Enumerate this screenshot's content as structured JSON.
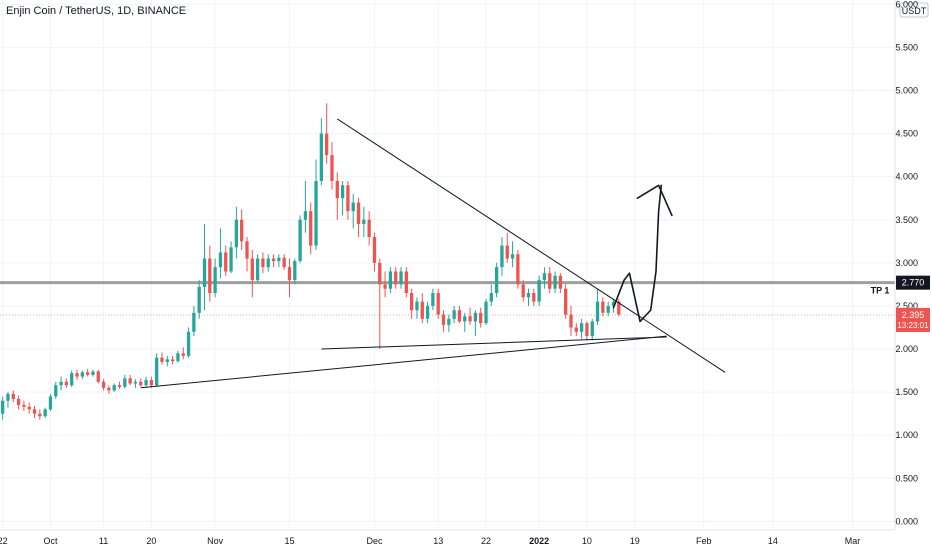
{
  "header": {
    "title": "Enjin Coin / TetherUS, 1D, BINANCE"
  },
  "colors": {
    "up": "#26a69a",
    "down": "#ef5350",
    "grid": "#f0f3fa",
    "trendline": "#131722",
    "horizontal_level": "#9e9e9e",
    "current_price_label": "#ef5350"
  },
  "chart_data": {
    "type": "candlestick",
    "symbol": "Enjin Coin / TetherUS",
    "interval": "1D",
    "exchange": "BINANCE",
    "currency_label": "USDT",
    "y_ticks": [
      "0.000",
      "0.500",
      "1.000",
      "1.500",
      "2.000",
      "2.500",
      "3.000",
      "3.500",
      "4.000",
      "4.500",
      "5.000",
      "5.500",
      "6.000"
    ],
    "ylim": [
      -0.1,
      6.05
    ],
    "x_ticks": [
      {
        "label": "22",
        "day": 0,
        "bold": false
      },
      {
        "label": "Oct",
        "day": 9,
        "bold": false
      },
      {
        "label": "11",
        "day": 19,
        "bold": false
      },
      {
        "label": "20",
        "day": 28,
        "bold": false
      },
      {
        "label": "Nov",
        "day": 40,
        "bold": false
      },
      {
        "label": "15",
        "day": 54,
        "bold": false
      },
      {
        "label": "Dec",
        "day": 70,
        "bold": false
      },
      {
        "label": "13",
        "day": 82,
        "bold": false
      },
      {
        "label": "22",
        "day": 91,
        "bold": false
      },
      {
        "label": "2022",
        "day": 101,
        "bold": true
      },
      {
        "label": "10",
        "day": 110,
        "bold": false
      },
      {
        "label": "19",
        "day": 119,
        "bold": false
      },
      {
        "label": "Feb",
        "day": 132,
        "bold": false
      },
      {
        "label": "14",
        "day": 145,
        "bold": false
      },
      {
        "label": "Mar",
        "day": 160,
        "bold": false
      }
    ],
    "x_range_days": [
      -0.5,
      168
    ],
    "candles": [
      {
        "o": 1.25,
        "h": 1.45,
        "l": 1.18,
        "c": 1.4
      },
      {
        "o": 1.4,
        "h": 1.5,
        "l": 1.32,
        "c": 1.48
      },
      {
        "o": 1.48,
        "h": 1.52,
        "l": 1.38,
        "c": 1.42
      },
      {
        "o": 1.42,
        "h": 1.46,
        "l": 1.3,
        "c": 1.35
      },
      {
        "o": 1.35,
        "h": 1.4,
        "l": 1.28,
        "c": 1.33
      },
      {
        "o": 1.33,
        "h": 1.38,
        "l": 1.25,
        "c": 1.3
      },
      {
        "o": 1.3,
        "h": 1.34,
        "l": 1.2,
        "c": 1.25
      },
      {
        "o": 1.25,
        "h": 1.3,
        "l": 1.18,
        "c": 1.22
      },
      {
        "o": 1.22,
        "h": 1.32,
        "l": 1.2,
        "c": 1.3
      },
      {
        "o": 1.3,
        "h": 1.48,
        "l": 1.28,
        "c": 1.45
      },
      {
        "o": 1.45,
        "h": 1.62,
        "l": 1.42,
        "c": 1.58
      },
      {
        "o": 1.58,
        "h": 1.68,
        "l": 1.52,
        "c": 1.62
      },
      {
        "o": 1.62,
        "h": 1.66,
        "l": 1.55,
        "c": 1.58
      },
      {
        "o": 1.58,
        "h": 1.75,
        "l": 1.56,
        "c": 1.72
      },
      {
        "o": 1.72,
        "h": 1.76,
        "l": 1.64,
        "c": 1.68
      },
      {
        "o": 1.68,
        "h": 1.75,
        "l": 1.65,
        "c": 1.73
      },
      {
        "o": 1.73,
        "h": 1.77,
        "l": 1.68,
        "c": 1.7
      },
      {
        "o": 1.7,
        "h": 1.76,
        "l": 1.68,
        "c": 1.74
      },
      {
        "o": 1.74,
        "h": 1.76,
        "l": 1.6,
        "c": 1.62
      },
      {
        "o": 1.62,
        "h": 1.65,
        "l": 1.52,
        "c": 1.55
      },
      {
        "o": 1.55,
        "h": 1.58,
        "l": 1.48,
        "c": 1.52
      },
      {
        "o": 1.52,
        "h": 1.6,
        "l": 1.5,
        "c": 1.58
      },
      {
        "o": 1.58,
        "h": 1.62,
        "l": 1.54,
        "c": 1.56
      },
      {
        "o": 1.56,
        "h": 1.7,
        "l": 1.54,
        "c": 1.66
      },
      {
        "o": 1.66,
        "h": 1.7,
        "l": 1.58,
        "c": 1.6
      },
      {
        "o": 1.6,
        "h": 1.65,
        "l": 1.55,
        "c": 1.62
      },
      {
        "o": 1.62,
        "h": 1.66,
        "l": 1.56,
        "c": 1.58
      },
      {
        "o": 1.58,
        "h": 1.68,
        "l": 1.56,
        "c": 1.64
      },
      {
        "o": 1.64,
        "h": 1.68,
        "l": 1.55,
        "c": 1.58
      },
      {
        "o": 1.58,
        "h": 1.95,
        "l": 1.56,
        "c": 1.9
      },
      {
        "o": 1.9,
        "h": 1.96,
        "l": 1.82,
        "c": 1.85
      },
      {
        "o": 1.85,
        "h": 1.92,
        "l": 1.8,
        "c": 1.88
      },
      {
        "o": 1.88,
        "h": 1.92,
        "l": 1.82,
        "c": 1.86
      },
      {
        "o": 1.86,
        "h": 1.98,
        "l": 1.84,
        "c": 1.95
      },
      {
        "o": 1.95,
        "h": 2.02,
        "l": 1.88,
        "c": 1.92
      },
      {
        "o": 1.92,
        "h": 2.25,
        "l": 1.9,
        "c": 2.2
      },
      {
        "o": 2.2,
        "h": 2.5,
        "l": 2.15,
        "c": 2.42
      },
      {
        "o": 2.42,
        "h": 2.8,
        "l": 2.35,
        "c": 2.72
      },
      {
        "o": 2.72,
        "h": 3.45,
        "l": 2.45,
        "c": 3.05
      },
      {
        "o": 3.05,
        "h": 3.2,
        "l": 2.55,
        "c": 2.65
      },
      {
        "o": 2.65,
        "h": 3.05,
        "l": 2.6,
        "c": 2.95
      },
      {
        "o": 2.95,
        "h": 3.4,
        "l": 2.82,
        "c": 3.12
      },
      {
        "o": 3.12,
        "h": 3.2,
        "l": 2.85,
        "c": 2.9
      },
      {
        "o": 2.9,
        "h": 3.25,
        "l": 2.88,
        "c": 3.18
      },
      {
        "o": 3.18,
        "h": 3.65,
        "l": 3.05,
        "c": 3.5
      },
      {
        "o": 3.5,
        "h": 3.62,
        "l": 3.15,
        "c": 3.25
      },
      {
        "o": 3.25,
        "h": 3.3,
        "l": 2.9,
        "c": 3.05
      },
      {
        "o": 3.05,
        "h": 3.15,
        "l": 2.6,
        "c": 2.8
      },
      {
        "o": 2.8,
        "h": 3.1,
        "l": 2.78,
        "c": 3.05
      },
      {
        "o": 3.05,
        "h": 3.12,
        "l": 2.88,
        "c": 2.95
      },
      {
        "o": 2.95,
        "h": 3.1,
        "l": 2.9,
        "c": 3.05
      },
      {
        "o": 3.05,
        "h": 3.1,
        "l": 2.95,
        "c": 3.02
      },
      {
        "o": 3.02,
        "h": 3.1,
        "l": 2.95,
        "c": 3.06
      },
      {
        "o": 3.06,
        "h": 3.1,
        "l": 2.92,
        "c": 2.95
      },
      {
        "o": 2.95,
        "h": 3.05,
        "l": 2.6,
        "c": 2.8
      },
      {
        "o": 2.8,
        "h": 3.05,
        "l": 2.75,
        "c": 3.02
      },
      {
        "o": 3.02,
        "h": 3.55,
        "l": 3.0,
        "c": 3.5
      },
      {
        "o": 3.5,
        "h": 3.95,
        "l": 3.35,
        "c": 3.6
      },
      {
        "o": 3.6,
        "h": 3.7,
        "l": 3.1,
        "c": 3.2
      },
      {
        "o": 3.2,
        "h": 4.2,
        "l": 3.15,
        "c": 3.95
      },
      {
        "o": 3.95,
        "h": 4.68,
        "l": 3.9,
        "c": 4.5
      },
      {
        "o": 4.5,
        "h": 4.85,
        "l": 4.15,
        "c": 4.25
      },
      {
        "o": 4.25,
        "h": 4.4,
        "l": 3.85,
        "c": 3.95
      },
      {
        "o": 3.95,
        "h": 4.05,
        "l": 3.5,
        "c": 3.75
      },
      {
        "o": 3.75,
        "h": 3.95,
        "l": 3.55,
        "c": 3.9
      },
      {
        "o": 3.9,
        "h": 3.95,
        "l": 3.5,
        "c": 3.6
      },
      {
        "o": 3.6,
        "h": 3.8,
        "l": 3.4,
        "c": 3.7
      },
      {
        "o": 3.7,
        "h": 3.75,
        "l": 3.3,
        "c": 3.45
      },
      {
        "o": 3.45,
        "h": 3.65,
        "l": 3.3,
        "c": 3.5
      },
      {
        "o": 3.5,
        "h": 3.6,
        "l": 3.2,
        "c": 3.3
      },
      {
        "o": 3.3,
        "h": 3.35,
        "l": 2.9,
        "c": 3.0
      },
      {
        "o": 3.0,
        "h": 3.05,
        "l": 2.0,
        "c": 2.75
      },
      {
        "o": 2.75,
        "h": 2.9,
        "l": 2.6,
        "c": 2.7
      },
      {
        "o": 2.7,
        "h": 2.95,
        "l": 2.65,
        "c": 2.9
      },
      {
        "o": 2.9,
        "h": 2.95,
        "l": 2.7,
        "c": 2.75
      },
      {
        "o": 2.75,
        "h": 2.95,
        "l": 2.7,
        "c": 2.9
      },
      {
        "o": 2.9,
        "h": 2.95,
        "l": 2.6,
        "c": 2.65
      },
      {
        "o": 2.65,
        "h": 2.7,
        "l": 2.35,
        "c": 2.45
      },
      {
        "o": 2.45,
        "h": 2.6,
        "l": 2.35,
        "c": 2.55
      },
      {
        "o": 2.55,
        "h": 2.65,
        "l": 2.3,
        "c": 2.35
      },
      {
        "o": 2.35,
        "h": 2.55,
        "l": 2.3,
        "c": 2.5
      },
      {
        "o": 2.5,
        "h": 2.7,
        "l": 2.45,
        "c": 2.65
      },
      {
        "o": 2.65,
        "h": 2.7,
        "l": 2.35,
        "c": 2.4
      },
      {
        "o": 2.4,
        "h": 2.45,
        "l": 2.2,
        "c": 2.28
      },
      {
        "o": 2.28,
        "h": 2.4,
        "l": 2.2,
        "c": 2.35
      },
      {
        "o": 2.35,
        "h": 2.5,
        "l": 2.3,
        "c": 2.45
      },
      {
        "o": 2.45,
        "h": 2.5,
        "l": 2.3,
        "c": 2.32
      },
      {
        "o": 2.32,
        "h": 2.42,
        "l": 2.2,
        "c": 2.38
      },
      {
        "o": 2.38,
        "h": 2.48,
        "l": 2.28,
        "c": 2.32
      },
      {
        "o": 2.32,
        "h": 2.45,
        "l": 2.15,
        "c": 2.42
      },
      {
        "o": 2.42,
        "h": 2.48,
        "l": 2.25,
        "c": 2.3
      },
      {
        "o": 2.3,
        "h": 2.58,
        "l": 2.28,
        "c": 2.55
      },
      {
        "o": 2.55,
        "h": 2.75,
        "l": 2.5,
        "c": 2.65
      },
      {
        "o": 2.65,
        "h": 3.0,
        "l": 2.6,
        "c": 2.95
      },
      {
        "o": 2.95,
        "h": 3.3,
        "l": 2.85,
        "c": 3.2
      },
      {
        "o": 3.2,
        "h": 3.35,
        "l": 3.0,
        "c": 3.05
      },
      {
        "o": 3.05,
        "h": 3.25,
        "l": 2.95,
        "c": 3.1
      },
      {
        "o": 3.1,
        "h": 3.15,
        "l": 2.7,
        "c": 2.75
      },
      {
        "o": 2.75,
        "h": 2.8,
        "l": 2.55,
        "c": 2.6
      },
      {
        "o": 2.6,
        "h": 2.7,
        "l": 2.5,
        "c": 2.65
      },
      {
        "o": 2.65,
        "h": 2.7,
        "l": 2.5,
        "c": 2.55
      },
      {
        "o": 2.55,
        "h": 2.85,
        "l": 2.5,
        "c": 2.8
      },
      {
        "o": 2.8,
        "h": 2.95,
        "l": 2.7,
        "c": 2.88
      },
      {
        "o": 2.88,
        "h": 2.95,
        "l": 2.65,
        "c": 2.7
      },
      {
        "o": 2.7,
        "h": 2.9,
        "l": 2.65,
        "c": 2.85
      },
      {
        "o": 2.85,
        "h": 2.88,
        "l": 2.65,
        "c": 2.7
      },
      {
        "o": 2.7,
        "h": 2.75,
        "l": 2.35,
        "c": 2.4
      },
      {
        "o": 2.4,
        "h": 2.5,
        "l": 2.15,
        "c": 2.25
      },
      {
        "o": 2.25,
        "h": 2.3,
        "l": 2.15,
        "c": 2.2
      },
      {
        "o": 2.2,
        "h": 2.35,
        "l": 2.12,
        "c": 2.3
      },
      {
        "o": 2.3,
        "h": 2.32,
        "l": 2.1,
        "c": 2.15
      },
      {
        "o": 2.15,
        "h": 2.35,
        "l": 2.1,
        "c": 2.32
      },
      {
        "o": 2.32,
        "h": 2.7,
        "l": 2.28,
        "c": 2.55
      },
      {
        "o": 2.55,
        "h": 2.6,
        "l": 2.38,
        "c": 2.42
      },
      {
        "o": 2.42,
        "h": 2.55,
        "l": 2.38,
        "c": 2.5
      },
      {
        "o": 2.5,
        "h": 2.58,
        "l": 2.42,
        "c": 2.55
      },
      {
        "o": 2.55,
        "h": 2.58,
        "l": 2.38,
        "c": 2.4
      }
    ],
    "horizontal_level": {
      "value": 2.77,
      "label": "2.770",
      "name": "TP 1"
    },
    "current_price": {
      "value": 2.395,
      "label": "2.395",
      "countdown": "13:23:01"
    },
    "drawings": {
      "trendlines": [
        {
          "from": [
            63,
            4.67
          ],
          "to": [
            136,
            1.73
          ]
        },
        {
          "from": [
            60,
            2.0
          ],
          "to": [
            125,
            2.14
          ]
        },
        {
          "from": [
            26,
            1.55
          ],
          "to": [
            125,
            2.15
          ]
        }
      ],
      "freehand_path": [
        [
          115,
          2.48
        ],
        [
          117,
          2.8
        ],
        [
          118,
          2.88
        ],
        [
          119,
          2.6
        ],
        [
          120,
          2.32
        ],
        [
          122,
          2.45
        ],
        [
          123,
          2.9
        ],
        [
          123.5,
          3.6
        ],
        [
          124,
          3.9
        ]
      ],
      "arrow_head": [
        [
          119.5,
          3.75
        ],
        [
          123.5,
          3.9
        ],
        [
          126,
          3.55
        ]
      ]
    }
  }
}
